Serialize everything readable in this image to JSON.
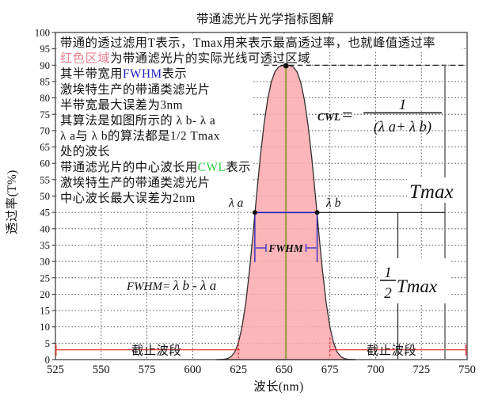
{
  "labels": {
    "title": "带通滤光片光学指标图解",
    "x_axis": "波长(nm)",
    "y_axis": "透过率(T%)"
  },
  "annotations": {
    "l1": "带通的透过滤用T表示，Tmax用来表示最高透过率，也就峰值透过率",
    "l2_hl": "红色区域",
    "l2_rest": "为带通滤光片的实际光线可透过区域",
    "l3_pre": "其半带宽用",
    "l3_hl": "FWHM",
    "l3_post": "表示",
    "l4": "激埃特生产的带通类滤光片",
    "l5": "半带宽最大误差为3nm",
    "l6": "其算法是如图所示的 λ b- λ a",
    "l7": "λ a与 λ b的算法都是1/2 Tmax",
    "l8": "处的波长",
    "l9_pre": "带通滤光片的中心波长用",
    "l9_hl": "CWL",
    "l9_post": "表示",
    "l10": "激埃特生产的带通类滤光片",
    "l11": "中心波长最大误差为2nm"
  },
  "markers": {
    "lambda_a": "λ a",
    "lambda_b": "λ b",
    "fwhm": "FWHM",
    "tmax": "Tmax",
    "half_num": "1",
    "half_den": "2",
    "half_tmax": "Tmax",
    "cutoff_left": "截止波段",
    "cutoff_right": "截止波段",
    "fwhm_formula_lhs": "FWHM= ",
    "fwhm_formula_rhs": "λ b - λ a",
    "cwl_lhs": "CWL",
    "cwl_eq": "=",
    "cwl_num": "1",
    "cwl_den": "(λ a+ λ b)"
  },
  "colors": {
    "pink_fill": "#FBA8AB",
    "curve_stroke": "#332f2f",
    "red": "#EE3333",
    "blue": "#2121C0",
    "green": "#2ECC40",
    "olive": "#A0A048",
    "gray_indicator": "#8C8C8C",
    "pink_text": "#E8808E",
    "grid": "#3A3A3A"
  },
  "chart_data": {
    "type": "area",
    "title": "带通滤光片光学指标图解",
    "xlabel": "波长(nm)",
    "ylabel": "透过率(T%)",
    "xlim": [
      525,
      750
    ],
    "ylim": [
      0,
      100
    ],
    "x_ticks": [
      525,
      550,
      575,
      600,
      625,
      650,
      675,
      700,
      725,
      750
    ],
    "y_ticks": [
      0,
      5,
      10,
      15,
      20,
      25,
      30,
      35,
      40,
      45,
      50,
      55,
      60,
      65,
      70,
      75,
      80,
      85,
      90,
      95,
      100
    ],
    "grid": "dotted",
    "curve_model": {
      "shape": "super-gaussian",
      "center_nm": 651,
      "peak_percent": 90,
      "width_param_nm": 18.9,
      "exponent": 3.3
    },
    "key_values": {
      "tmax_percent": 90,
      "half_tmax_percent": 45,
      "cwl_nm": 651,
      "lambda_a_nm": 634,
      "lambda_b_nm": 668,
      "fwhm_nm": 34,
      "cutoff_level_percent": 3,
      "cutoff_left_range_nm": [
        525,
        625
      ],
      "cutoff_right_range_nm": [
        675,
        750
      ]
    },
    "samples": [
      [
        613,
        0
      ],
      [
        615,
        0.03
      ],
      [
        617,
        0.1
      ],
      [
        619,
        0.3
      ],
      [
        621,
        0.9
      ],
      [
        623,
        2.3
      ],
      [
        625,
        5.1
      ],
      [
        627,
        10
      ],
      [
        629,
        17.3
      ],
      [
        631,
        27
      ],
      [
        633,
        38.4
      ],
      [
        634,
        44.5
      ],
      [
        635,
        50.5
      ],
      [
        637,
        62.1
      ],
      [
        639,
        72
      ],
      [
        641,
        79.6
      ],
      [
        643,
        84.9
      ],
      [
        645,
        88
      ],
      [
        647,
        89.5
      ],
      [
        649,
        89.9
      ],
      [
        651,
        90
      ],
      [
        653,
        89.9
      ],
      [
        655,
        89.5
      ],
      [
        657,
        88
      ],
      [
        659,
        84.9
      ],
      [
        661,
        79.6
      ],
      [
        663,
        72
      ],
      [
        665,
        62.1
      ],
      [
        667,
        50.5
      ],
      [
        668,
        44.5
      ],
      [
        669,
        38.4
      ],
      [
        671,
        27
      ],
      [
        673,
        17.3
      ],
      [
        675,
        10
      ],
      [
        677,
        5.1
      ],
      [
        679,
        2.3
      ],
      [
        681,
        0.9
      ],
      [
        683,
        0.3
      ],
      [
        685,
        0.1
      ],
      [
        687,
        0.03
      ],
      [
        689,
        0
      ]
    ]
  }
}
